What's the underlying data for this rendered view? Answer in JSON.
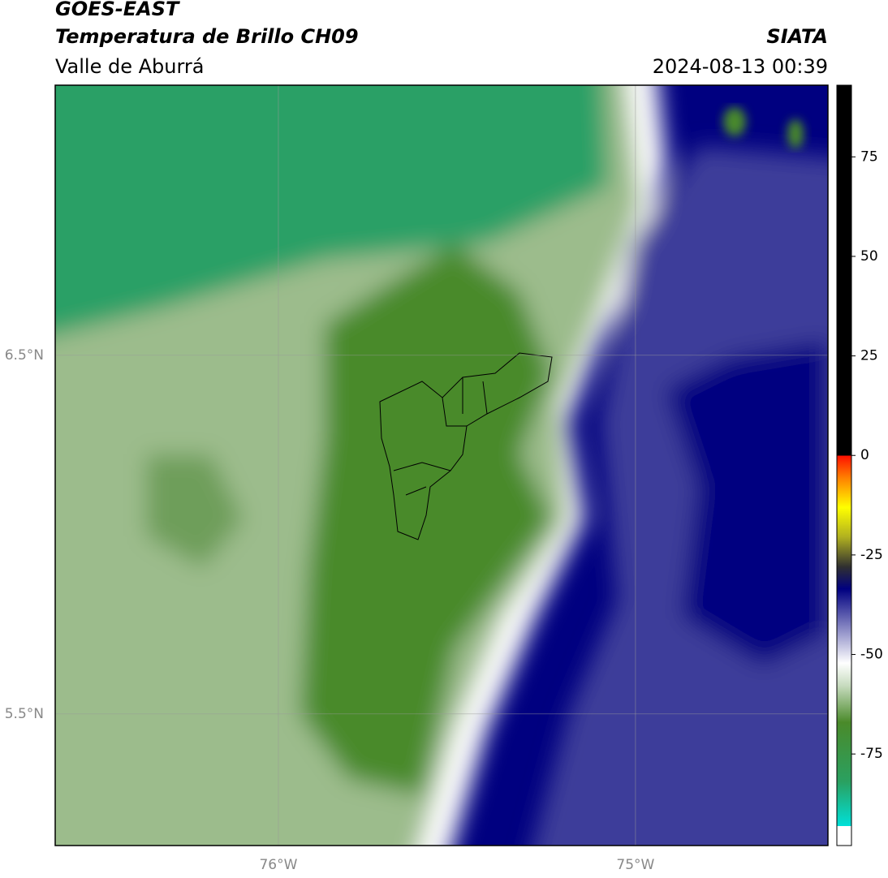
{
  "header": {
    "title": "GOES-EAST",
    "subtitle": "Temperatura de Brillo CH09",
    "region": "Valle de Aburrá",
    "source": "SIATA",
    "datetime": "2024-08-13 00:39"
  },
  "map": {
    "lonlim": [
      -76.625,
      -74.461
    ],
    "latlim": [
      5.133,
      7.253
    ],
    "lon_ticks": [
      {
        "value": -76,
        "label": "76°W"
      },
      {
        "value": -75,
        "label": "75°W"
      }
    ],
    "lat_ticks": [
      {
        "value": 6.5,
        "label": "6.5°N"
      },
      {
        "value": 5.5,
        "label": "5.5°N"
      }
    ],
    "grid": true
  },
  "colorbar": {
    "lim": [
      -98,
      93
    ],
    "ticks": [
      75,
      50,
      25,
      0,
      -25,
      -50,
      -75
    ]
  }
}
